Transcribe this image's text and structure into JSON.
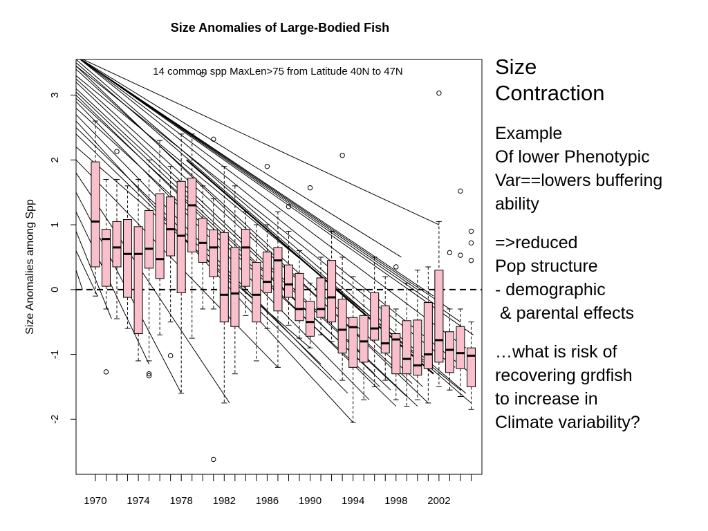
{
  "chart_data": {
    "type": "box",
    "title": "Size Anomalies of Large-Bodied Fish",
    "subtitle": "14 common spp MaxLen>75 from Latitude 40N to 47N",
    "xlabel": "",
    "ylabel": "Size Anomalies among Spp",
    "x_range": [
      1968.2,
      2006
    ],
    "ylim": [
      -2.85,
      3.55
    ],
    "x_tick_labels": [
      "1970",
      "1974",
      "1978",
      "1982",
      "1986",
      "1990",
      "1994",
      "1998",
      "2002"
    ],
    "y_ticks": [
      -2,
      -1,
      0,
      1,
      2,
      3
    ],
    "reference_line_y": 0,
    "box_fill": "#f9c0cb",
    "years": [
      1970,
      1971,
      1972,
      1973,
      1974,
      1975,
      1976,
      1977,
      1978,
      1979,
      1980,
      1981,
      1982,
      1983,
      1984,
      1985,
      1986,
      1987,
      1988,
      1989,
      1990,
      1991,
      1992,
      1993,
      1994,
      1995,
      1996,
      1997,
      1998,
      1999,
      2000,
      2001,
      2002,
      2003,
      2004,
      2005
    ],
    "boxes": [
      {
        "year": 1970,
        "whisker_low": -0.1,
        "q1": 0.35,
        "median": 1.05,
        "q3": 1.97,
        "whisker_high": 2.6
      },
      {
        "year": 1971,
        "whisker_low": -0.3,
        "q1": 0.05,
        "median": 0.78,
        "q3": 0.93,
        "whisker_high": 1.7
      },
      {
        "year": 1972,
        "whisker_low": -0.45,
        "q1": 0.35,
        "median": 0.65,
        "q3": 1.05,
        "whisker_high": 1.7
      },
      {
        "year": 1973,
        "whisker_low": -0.6,
        "q1": -0.12,
        "median": 0.55,
        "q3": 1.08,
        "whisker_high": 1.6
      },
      {
        "year": 1974,
        "whisker_low": -1.1,
        "q1": -0.68,
        "median": 0.55,
        "q3": 0.97,
        "whisker_high": 1.7
      },
      {
        "year": 1975,
        "whisker_low": -1.1,
        "q1": 0.33,
        "median": 0.63,
        "q3": 1.22,
        "whisker_high": 2.0
      },
      {
        "year": 1976,
        "whisker_low": -0.7,
        "q1": 0.17,
        "median": 0.47,
        "q3": 1.48,
        "whisker_high": 2.3
      },
      {
        "year": 1977,
        "whisker_low": -0.5,
        "q1": 0.52,
        "median": 0.93,
        "q3": 1.43,
        "whisker_high": 1.9
      },
      {
        "year": 1978,
        "whisker_low": -1.6,
        "q1": -0.05,
        "median": 0.83,
        "q3": 1.67,
        "whisker_high": 2.4
      },
      {
        "year": 1979,
        "whisker_low": -0.75,
        "q1": 0.58,
        "median": 1.3,
        "q3": 1.72,
        "whisker_high": 2.4
      },
      {
        "year": 1980,
        "whisker_low": -0.3,
        "q1": 0.42,
        "median": 0.72,
        "q3": 1.1,
        "whisker_high": 1.6
      },
      {
        "year": 1981,
        "whisker_low": -0.3,
        "q1": 0.2,
        "median": 0.65,
        "q3": 0.92,
        "whisker_high": 1.4
      },
      {
        "year": 1982,
        "whisker_low": -1.75,
        "q1": -0.5,
        "median": -0.08,
        "q3": 0.88,
        "whisker_high": 1.9
      },
      {
        "year": 1983,
        "whisker_low": -1.3,
        "q1": -0.57,
        "median": -0.06,
        "q3": 0.65,
        "whisker_high": 1.6
      },
      {
        "year": 1984,
        "whisker_low": -0.4,
        "q1": 0.05,
        "median": 0.65,
        "q3": 0.93,
        "whisker_high": 1.2
      },
      {
        "year": 1985,
        "whisker_low": -1.1,
        "q1": -0.5,
        "median": -0.08,
        "q3": 0.42,
        "whisker_high": 1.0
      },
      {
        "year": 1986,
        "whisker_low": -0.6,
        "q1": -0.05,
        "median": 0.12,
        "q3": 0.58,
        "whisker_high": 1.0
      },
      {
        "year": 1987,
        "whisker_low": -1.2,
        "q1": -0.33,
        "median": 0.45,
        "q3": 0.65,
        "whisker_high": 1.2
      },
      {
        "year": 1988,
        "whisker_low": -0.55,
        "q1": -0.12,
        "median": 0.08,
        "q3": 0.38,
        "whisker_high": 0.9
      },
      {
        "year": 1989,
        "whisker_low": -0.75,
        "q1": -0.48,
        "median": -0.3,
        "q3": 0.25,
        "whisker_high": 0.6
      },
      {
        "year": 1990,
        "whisker_low": -0.9,
        "q1": -0.72,
        "median": -0.5,
        "q3": -0.18,
        "whisker_high": 0.1
      },
      {
        "year": 1991,
        "whisker_low": -0.7,
        "q1": -0.43,
        "median": -0.3,
        "q3": 0.18,
        "whisker_high": 0.5
      },
      {
        "year": 1992,
        "whisker_low": -0.8,
        "q1": -0.5,
        "median": -0.12,
        "q3": 0.45,
        "whisker_high": 0.9
      },
      {
        "year": 1993,
        "whisker_low": -1.4,
        "q1": -0.98,
        "median": -0.62,
        "q3": -0.15,
        "whisker_high": 0.5
      },
      {
        "year": 1994,
        "whisker_low": -2.05,
        "q1": -1.2,
        "median": -0.58,
        "q3": -0.43,
        "whisker_high": 0.2
      },
      {
        "year": 1995,
        "whisker_low": -1.7,
        "q1": -1.12,
        "median": -0.8,
        "q3": -0.4,
        "whisker_high": 0.0
      },
      {
        "year": 1996,
        "whisker_low": -1.5,
        "q1": -0.78,
        "median": -0.6,
        "q3": -0.05,
        "whisker_high": 0.5
      },
      {
        "year": 1997,
        "whisker_low": -1.4,
        "q1": -0.98,
        "median": -0.83,
        "q3": -0.25,
        "whisker_high": 0.2
      },
      {
        "year": 1998,
        "whisker_low": -1.7,
        "q1": -1.3,
        "median": -0.77,
        "q3": -0.68,
        "whisker_high": -0.3
      },
      {
        "year": 1999,
        "whisker_low": -1.8,
        "q1": -1.3,
        "median": -1.07,
        "q3": -0.48,
        "whisker_high": 0.1
      },
      {
        "year": 2000,
        "whisker_low": -1.7,
        "q1": -1.32,
        "median": -1.17,
        "q3": -0.47,
        "whisker_high": 0.3
      },
      {
        "year": 2001,
        "whisker_low": -1.75,
        "q1": -1.22,
        "median": -1.0,
        "q3": -0.2,
        "whisker_high": 0.35
      },
      {
        "year": 2002,
        "whisker_low": -1.5,
        "q1": -1.12,
        "median": -0.78,
        "q3": 0.3,
        "whisker_high": 1.05
      },
      {
        "year": 2003,
        "whisker_low": -1.55,
        "q1": -1.28,
        "median": -0.93,
        "q3": -0.65,
        "whisker_high": -0.3
      },
      {
        "year": 2004,
        "whisker_low": -1.65,
        "q1": -1.22,
        "median": -0.98,
        "q3": -0.57,
        "whisker_high": -0.3
      },
      {
        "year": 2005,
        "whisker_low": -1.85,
        "q1": -1.5,
        "median": -1.02,
        "q3": -0.9,
        "whisker_high": -0.5
      }
    ],
    "outliers": [
      {
        "year": 1971,
        "y": -1.27
      },
      {
        "year": 1972,
        "y": 2.13
      },
      {
        "year": 1975,
        "y": -1.3
      },
      {
        "year": 1975,
        "y": -1.33
      },
      {
        "year": 1977,
        "y": -1.02
      },
      {
        "year": 1980,
        "y": 3.32
      },
      {
        "year": 1981,
        "y": 2.32
      },
      {
        "year": 1981,
        "y": -2.62
      },
      {
        "year": 1986,
        "y": 1.9
      },
      {
        "year": 1988,
        "y": 1.28
      },
      {
        "year": 1990,
        "y": 1.57
      },
      {
        "year": 1993,
        "y": 2.07
      },
      {
        "year": 1998,
        "y": 0.35
      },
      {
        "year": 2002,
        "y": 3.03
      },
      {
        "year": 2003,
        "y": 0.57
      },
      {
        "year": 2004,
        "y": 1.52
      },
      {
        "year": 2004,
        "y": 0.53
      },
      {
        "year": 2005,
        "y": 0.9
      },
      {
        "year": 2005,
        "y": 0.72
      },
      {
        "year": 2005,
        "y": 0.45
      }
    ],
    "trend_lines": [
      {
        "x": [
          1968.2,
          2002.0
        ],
        "y": [
          3.6,
          1.0
        ]
      },
      {
        "x": [
          1968.2,
          1998.5
        ],
        "y": [
          3.6,
          0.5
        ]
      },
      {
        "x": [
          1968.2,
          2000.0
        ],
        "y": [
          3.6,
          0.0
        ]
      },
      {
        "x": [
          1968.2,
          2001.5
        ],
        "y": [
          3.6,
          -0.1
        ]
      },
      {
        "x": [
          1968.2,
          2003.0
        ],
        "y": [
          3.6,
          -0.3
        ]
      },
      {
        "x": [
          1968.2,
          2004.0
        ],
        "y": [
          3.6,
          -0.5
        ]
      },
      {
        "x": [
          1968.2,
          2004.5
        ],
        "y": [
          3.6,
          -0.9
        ]
      },
      {
        "x": [
          1968.2,
          2005.0
        ],
        "y": [
          3.6,
          -1.3
        ]
      },
      {
        "x": [
          1968.2,
          2004.5
        ],
        "y": [
          3.55,
          -1.6
        ]
      },
      {
        "x": [
          1968.2,
          2005.0
        ],
        "y": [
          3.5,
          -1.75
        ]
      },
      {
        "x": [
          1968.2,
          2001.0
        ],
        "y": [
          3.45,
          -1.75
        ]
      },
      {
        "x": [
          1968.2,
          2000.5
        ],
        "y": [
          3.4,
          -1.5
        ]
      },
      {
        "x": [
          1968.2,
          2004.0
        ],
        "y": [
          3.3,
          -1.55
        ]
      },
      {
        "x": [
          1968.2,
          2000.0
        ],
        "y": [
          3.2,
          -1.8
        ]
      },
      {
        "x": [
          1968.2,
          1999.0
        ],
        "y": [
          3.1,
          -1.65
        ]
      },
      {
        "x": [
          1968.2,
          1998.0
        ],
        "y": [
          3.0,
          -1.8
        ]
      },
      {
        "x": [
          1968.2,
          1995.5
        ],
        "y": [
          2.9,
          -1.7
        ]
      },
      {
        "x": [
          1968.2,
          1996.5
        ],
        "y": [
          2.8,
          -1.5
        ]
      },
      {
        "x": [
          1968.2,
          1994.0
        ],
        "y": [
          2.6,
          -2.05
        ]
      },
      {
        "x": [
          1968.2,
          1992.0
        ],
        "y": [
          2.4,
          -1.4
        ]
      },
      {
        "x": [
          1968.2,
          1990.0
        ],
        "y": [
          2.2,
          -0.9
        ]
      },
      {
        "x": [
          1968.2,
          1987.0
        ],
        "y": [
          2.0,
          -1.2
        ]
      },
      {
        "x": [
          1968.2,
          1982.5
        ],
        "y": [
          1.8,
          -1.75
        ]
      },
      {
        "x": [
          1968.2,
          1978.0
        ],
        "y": [
          1.5,
          -1.6
        ]
      },
      {
        "x": [
          1968.2,
          1975.0
        ],
        "y": [
          1.2,
          -1.15
        ]
      },
      {
        "x": [
          1968.2,
          1971.5
        ],
        "y": [
          0.9,
          -0.45
        ]
      },
      {
        "x": [
          1968.2,
          1970.2
        ],
        "y": [
          0.6,
          -0.1
        ]
      },
      {
        "x": [
          1968.2,
          1968.8
        ],
        "y": [
          0.3,
          0.0
        ]
      },
      {
        "x": [
          1968.2,
          2005.2
        ],
        "y": [
          3.6,
          -0.7
        ]
      },
      {
        "x": [
          1968.2,
          2003.5
        ],
        "y": [
          3.45,
          -1.2
        ]
      },
      {
        "x": [
          1968.2,
          1999.5
        ],
        "y": [
          3.25,
          -1.45
        ]
      },
      {
        "x": [
          1968.2,
          1997.5
        ],
        "y": [
          3.05,
          -1.55
        ]
      },
      {
        "x": [
          1968.2,
          1996.0
        ],
        "y": [
          2.95,
          -1.3
        ]
      },
      {
        "x": [
          1968.2,
          1993.5
        ],
        "y": [
          2.7,
          -1.6
        ]
      },
      {
        "x": [
          1968.2,
          1991.0
        ],
        "y": [
          2.5,
          -1.15
        ]
      }
    ],
    "bold_trend_line": {
      "x": [
        1978.5,
        2001.5
      ],
      "y": [
        2.0,
        -1.3
      ]
    }
  },
  "side_panel": {
    "heading": [
      "Size",
      "Contraction"
    ],
    "block1": [
      "Example",
      "Of lower Phenotypic",
      "Var==lowers buffering",
      "ability"
    ],
    "block2": [
      "=>reduced",
      "Pop structure",
      "- demographic",
      " & parental effects"
    ],
    "block3": [
      "…what is risk of",
      "recovering grdfish",
      "to increase in",
      "Climate variability?"
    ]
  }
}
